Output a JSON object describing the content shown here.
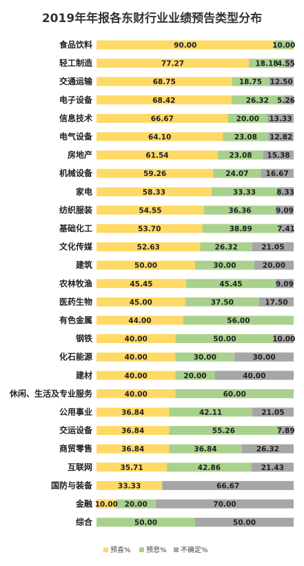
{
  "chart_data": {
    "type": "bar",
    "orientation": "horizontal",
    "stacked": true,
    "title": "2019年年报各东财行业业绩预告类型分布",
    "xlabel": "",
    "ylabel": "",
    "xlim": [
      0,
      100
    ],
    "grid": false,
    "legend_position": "bottom",
    "categories": [
      "食品饮料",
      "轻工制造",
      "交通运输",
      "电子设备",
      "信息技术",
      "电气设备",
      "房地产",
      "机械设备",
      "家电",
      "纺织服装",
      "基础化工",
      "文化传媒",
      "建筑",
      "农林牧渔",
      "医药生物",
      "有色金属",
      "钢铁",
      "化石能源",
      "建材",
      "休闲、生活及专业服务",
      "公用事业",
      "交运设备",
      "商贸零售",
      "互联网",
      "国防与装备",
      "金融",
      "综合"
    ],
    "series": [
      {
        "name": "预喜%",
        "color": "#FFD966",
        "values": [
          90.0,
          77.27,
          68.75,
          68.42,
          66.67,
          64.1,
          61.54,
          59.26,
          58.33,
          54.55,
          53.7,
          52.63,
          50.0,
          45.45,
          45.0,
          44.0,
          40.0,
          40.0,
          40.0,
          40.0,
          36.84,
          36.84,
          36.84,
          35.71,
          33.33,
          10.0,
          0
        ],
        "labels": [
          "90.00",
          "77.27",
          "68.75",
          "68.42",
          "66.67",
          "64.10",
          "61.54",
          "59.26",
          "58.33",
          "54.55",
          "53.70",
          "52.63",
          "50.00",
          "45.45",
          "45.00",
          "44.00",
          "40.00",
          "40.00",
          "40.00",
          "40.00",
          "36.84",
          "36.84",
          "36.84",
          "35.71",
          "33.33",
          "10.00",
          ""
        ]
      },
      {
        "name": "预悲%",
        "color": "#A9D18E",
        "values": [
          10.0,
          18.18,
          18.75,
          26.32,
          20.0,
          23.08,
          23.08,
          24.07,
          33.33,
          36.36,
          38.89,
          26.32,
          30.0,
          45.45,
          37.5,
          56.0,
          50.0,
          30.0,
          20.0,
          60.0,
          42.11,
          55.26,
          36.84,
          42.86,
          0,
          20.0,
          50.0
        ],
        "labels": [
          "10.00",
          "18.18",
          "18.75",
          "26.32",
          "20.00",
          "23.08",
          "23.08",
          "24.07",
          "33.33",
          "36.36",
          "38.89",
          "26.32",
          "30.00",
          "45.45",
          "37.50",
          "56.00",
          "50.00",
          "30.00",
          "20.00",
          "60.00",
          "42.11",
          "55.26",
          "36.84",
          "42.86",
          "",
          "20.00",
          "50.00"
        ]
      },
      {
        "name": "不确定%",
        "color": "#A6A6A6",
        "values": [
          0,
          4.55,
          12.5,
          5.26,
          13.33,
          12.82,
          15.38,
          16.67,
          8.33,
          9.09,
          7.41,
          21.05,
          20.0,
          9.09,
          17.5,
          0,
          10.0,
          30.0,
          40.0,
          0,
          21.05,
          7.89,
          26.32,
          21.43,
          66.67,
          70.0,
          50.0
        ],
        "labels": [
          "",
          "4.55",
          "12.50",
          "5.26",
          "13.33",
          "12.82",
          "15.38",
          "16.67",
          "8.33",
          "9.09",
          "7.41",
          "21.05",
          "20.00",
          "9.09",
          "17.50",
          "",
          "10.00",
          "30.00",
          "40.00",
          "",
          "21.05",
          "7.89",
          "26.32",
          "21.43",
          "66.67",
          "70.00",
          "50.00"
        ]
      }
    ]
  }
}
